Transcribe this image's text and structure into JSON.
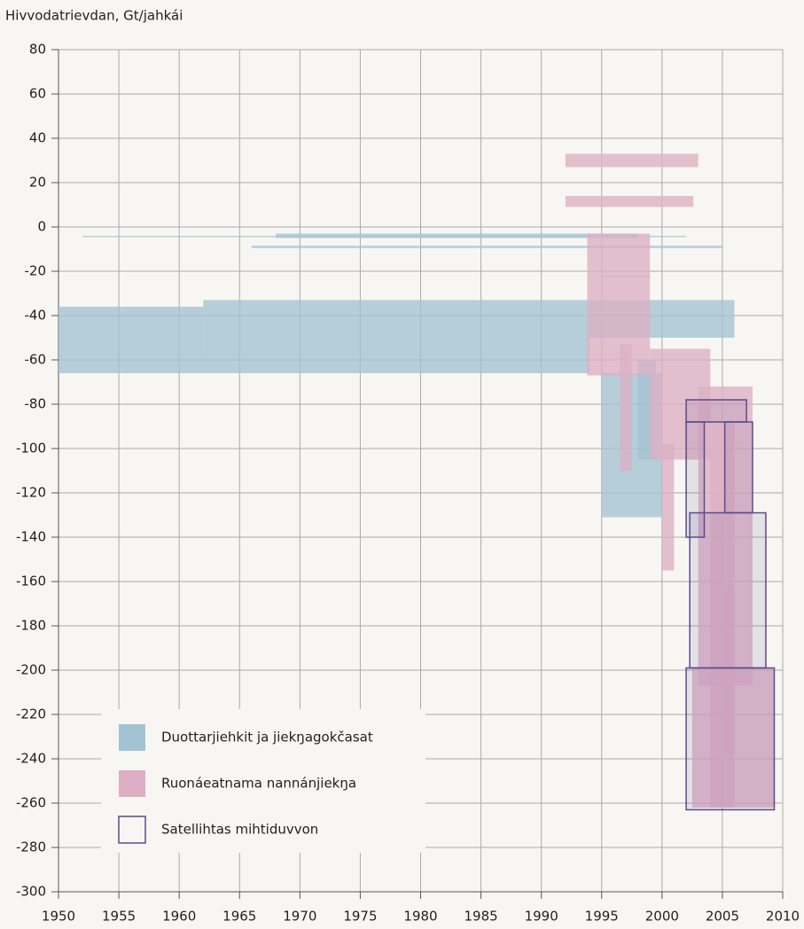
{
  "chart_data": {
    "type": "range",
    "y_axis_label": "Hivvodatrievdan, Gt/jahkái",
    "xlim": [
      1950,
      2010
    ],
    "xticks": [
      1950,
      1955,
      1960,
      1965,
      1970,
      1975,
      1980,
      1985,
      1990,
      1995,
      2000,
      2005,
      2010
    ],
    "ylim": [
      -300,
      80
    ],
    "yticks": [
      -300,
      -280,
      -260,
      -240,
      -220,
      -200,
      -180,
      -160,
      -140,
      -120,
      -100,
      -80,
      -60,
      -40,
      -20,
      0,
      20,
      40,
      60,
      80
    ],
    "grid": true,
    "legend": "bottom-left",
    "series": [
      {
        "name": "Duottarjiehkit ja jiekŋagokčasat",
        "color": "#a3c3d3",
        "outline": false,
        "boxes": [
          {
            "x": [
              1950,
              1962
            ],
            "y": [
              -66,
              -36
            ]
          },
          {
            "x": [
              1962,
              2006
            ],
            "y": [
              -50,
              -33
            ]
          },
          {
            "x": [
              1962,
              1994
            ],
            "y": [
              -66,
              -50
            ]
          },
          {
            "x": [
              1952,
              2002
            ],
            "y": [
              -4,
              -4
            ]
          },
          {
            "x": [
              1968,
              1998
            ],
            "y": [
              -5,
              -3
            ]
          },
          {
            "x": [
              1966,
              2005
            ],
            "y": [
              -9.5,
              -8.5
            ]
          },
          {
            "x": [
              1995,
              1999
            ],
            "y": [
              -22,
              -22
            ]
          },
          {
            "x": [
              1995,
              2000
            ],
            "y": [
              -131,
              -66
            ]
          },
          {
            "x": [
              1998,
              1999.5
            ],
            "y": [
              -105,
              -60
            ]
          }
        ]
      },
      {
        "name": "Ruonáeatnama nannánjiekŋa",
        "color": "#dcafc4",
        "outline": false,
        "boxes": [
          {
            "x": [
              1992,
              2003
            ],
            "y": [
              27,
              33
            ]
          },
          {
            "x": [
              1992,
              2002.6
            ],
            "y": [
              9,
              14
            ]
          },
          {
            "x": [
              1993.8,
              1999
            ],
            "y": [
              -67,
              -3
            ]
          },
          {
            "x": [
              1999,
              2004
            ],
            "y": [
              -105,
              -55
            ]
          },
          {
            "x": [
              1996.5,
              1997.5
            ],
            "y": [
              -110,
              -53
            ]
          },
          {
            "x": [
              2000,
              2001
            ],
            "y": [
              -155,
              -98
            ]
          },
          {
            "x": [
              2003,
              2007.5
            ],
            "y": [
              -207,
              -72
            ]
          },
          {
            "x": [
              2002.5,
              2009.3
            ],
            "y": [
              -262,
              -199
            ]
          },
          {
            "x": [
              2004,
              2006
            ],
            "y": [
              -262,
              -88
            ]
          },
          {
            "x": [
              2005,
              2006
            ],
            "y": [
              -238,
              -162
            ]
          }
        ]
      },
      {
        "name": "Satellihtas mihtiduvvon",
        "color": "#5b4a8c",
        "outline": true,
        "boxes": [
          {
            "x": [
              2002,
              2007
            ],
            "y": [
              -88,
              -78
            ]
          },
          {
            "x": [
              2002,
              2003.5
            ],
            "y": [
              -140,
              -88
            ]
          },
          {
            "x": [
              2005.2,
              2007.5
            ],
            "y": [
              -129,
              -88
            ]
          },
          {
            "x": [
              2002.3,
              2008.6
            ],
            "y": [
              -199,
              -129
            ]
          },
          {
            "x": [
              2002,
              2009.3
            ],
            "y": [
              -263,
              -199
            ]
          }
        ]
      }
    ]
  }
}
